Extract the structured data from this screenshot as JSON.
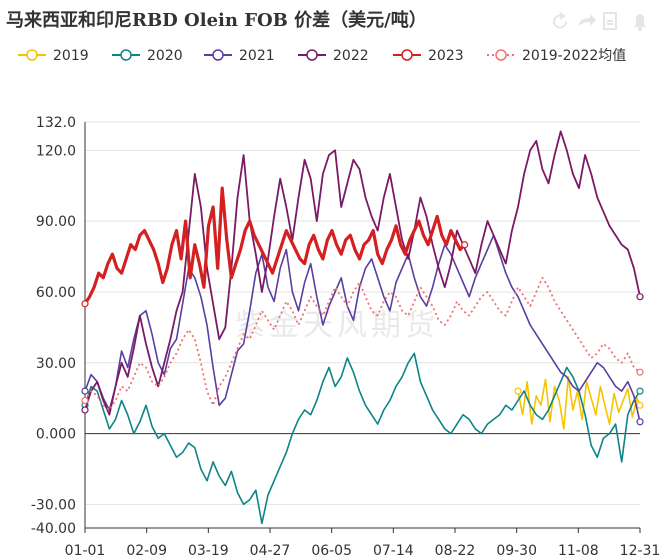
{
  "title": "马来西亚和印尼RBD Olein FOB 价差（美元/吨）",
  "watermark": "紫金天风期货",
  "toolbox_icons": [
    "restore-icon",
    "share-icon",
    "save-image-icon",
    "bell-icon"
  ],
  "chart_data": {
    "type": "line",
    "x_ticks": [
      "01-01",
      "02-09",
      "03-19",
      "04-27",
      "06-05",
      "07-14",
      "08-22",
      "09-30",
      "11-08",
      "12-31"
    ],
    "y_ticks": [
      "132.0",
      "120.0",
      "90.00",
      "60.00",
      "30.00",
      "0.000",
      "-30.00",
      "-40.00"
    ],
    "ylim": [
      -40,
      132
    ],
    "legend_position": "top",
    "series": [
      {
        "name": "2019",
        "color": "#f5c400",
        "width": 1.6,
        "x": [
          284,
          287,
          290,
          293,
          296,
          299,
          302,
          305,
          308,
          311,
          314,
          317,
          320,
          323,
          326,
          329,
          332,
          335,
          338,
          341,
          344,
          347,
          350,
          353,
          356,
          359,
          362,
          364
        ],
        "y": [
          18,
          8,
          22,
          4,
          16,
          12,
          23,
          5,
          20,
          14,
          2,
          24,
          10,
          18,
          6,
          22,
          15,
          8,
          20,
          12,
          4,
          17,
          9,
          14,
          19,
          7,
          15,
          12
        ]
      },
      {
        "name": "2020",
        "color": "#0e8487",
        "width": 1.6,
        "x": [
          0,
          4,
          8,
          12,
          16,
          20,
          24,
          28,
          32,
          36,
          40,
          44,
          48,
          52,
          56,
          60,
          64,
          68,
          72,
          76,
          80,
          84,
          88,
          92,
          96,
          100,
          104,
          108,
          112,
          116,
          120,
          124,
          128,
          132,
          136,
          140,
          144,
          148,
          152,
          156,
          160,
          164,
          168,
          172,
          176,
          180,
          184,
          188,
          192,
          196,
          200,
          204,
          208,
          212,
          216,
          220,
          224,
          228,
          232,
          236,
          240,
          244,
          248,
          252,
          256,
          260,
          264,
          268,
          272,
          276,
          280,
          284,
          288,
          292,
          296,
          300,
          304,
          308,
          312,
          316,
          320,
          324,
          328,
          332,
          336,
          340,
          344,
          348,
          352,
          356,
          360,
          364
        ],
        "y": [
          12,
          20,
          18,
          10,
          2,
          6,
          14,
          8,
          0,
          5,
          12,
          3,
          -2,
          0,
          -5,
          -10,
          -8,
          -4,
          -6,
          -15,
          -20,
          -12,
          -18,
          -22,
          -16,
          -25,
          -30,
          -28,
          -24,
          -38,
          -26,
          -20,
          -14,
          -8,
          0,
          6,
          10,
          8,
          14,
          22,
          28,
          20,
          24,
          32,
          26,
          18,
          12,
          8,
          4,
          10,
          14,
          20,
          24,
          30,
          34,
          22,
          16,
          10,
          6,
          2,
          0,
          4,
          8,
          6,
          2,
          0,
          4,
          6,
          8,
          12,
          10,
          14,
          18,
          12,
          8,
          6,
          10,
          16,
          22,
          28,
          24,
          18,
          8,
          -5,
          -10,
          -2,
          0,
          4,
          -12,
          8,
          14,
          18
        ]
      },
      {
        "name": "2021",
        "color": "#5a3ea0",
        "width": 1.6,
        "x": [
          0,
          4,
          8,
          12,
          16,
          20,
          24,
          28,
          32,
          36,
          40,
          44,
          48,
          52,
          56,
          60,
          64,
          68,
          72,
          76,
          80,
          84,
          88,
          92,
          96,
          100,
          104,
          108,
          112,
          116,
          120,
          124,
          128,
          132,
          136,
          140,
          144,
          148,
          152,
          156,
          160,
          164,
          168,
          172,
          176,
          180,
          184,
          188,
          192,
          196,
          200,
          204,
          208,
          212,
          216,
          220,
          224,
          228,
          232,
          236,
          240,
          244,
          248,
          252,
          256,
          260,
          264,
          268,
          272,
          276,
          280,
          284,
          288,
          292,
          296,
          300,
          304,
          308,
          312,
          316,
          320,
          324,
          328,
          332,
          336,
          340,
          344,
          348,
          352,
          356,
          360,
          364
        ],
        "y": [
          18,
          25,
          22,
          15,
          10,
          20,
          35,
          28,
          40,
          50,
          52,
          42,
          30,
          25,
          36,
          40,
          55,
          70,
          66,
          58,
          46,
          28,
          12,
          15,
          25,
          35,
          38,
          52,
          68,
          76,
          62,
          56,
          70,
          78,
          60,
          52,
          64,
          72,
          58,
          46,
          54,
          60,
          66,
          54,
          48,
          62,
          70,
          74,
          66,
          58,
          52,
          64,
          70,
          76,
          66,
          58,
          54,
          62,
          72,
          80,
          76,
          70,
          64,
          58,
          66,
          72,
          78,
          84,
          76,
          68,
          62,
          58,
          52,
          46,
          42,
          38,
          34,
          30,
          26,
          24,
          20,
          18,
          22,
          26,
          30,
          28,
          24,
          20,
          18,
          22,
          16,
          5
        ]
      },
      {
        "name": "2022",
        "color": "#7a1a64",
        "width": 1.8,
        "x": [
          0,
          4,
          8,
          12,
          16,
          20,
          24,
          28,
          32,
          36,
          40,
          44,
          48,
          52,
          56,
          60,
          64,
          68,
          72,
          76,
          80,
          84,
          88,
          92,
          96,
          100,
          104,
          108,
          112,
          116,
          120,
          124,
          128,
          132,
          136,
          140,
          144,
          148,
          152,
          156,
          160,
          164,
          168,
          172,
          176,
          180,
          184,
          188,
          192,
          196,
          200,
          204,
          208,
          212,
          216,
          220,
          224,
          228,
          232,
          236,
          240,
          244,
          248,
          252,
          256,
          260,
          264,
          268,
          272,
          276,
          280,
          284,
          288,
          292,
          296,
          300,
          304,
          308,
          312,
          316,
          320,
          324,
          328,
          332,
          336,
          340,
          344,
          348,
          352,
          356,
          360,
          364
        ],
        "y": [
          10,
          18,
          22,
          14,
          8,
          20,
          30,
          24,
          36,
          50,
          38,
          28,
          20,
          30,
          40,
          52,
          60,
          85,
          110,
          96,
          70,
          55,
          40,
          45,
          70,
          100,
          118,
          90,
          76,
          60,
          74,
          92,
          108,
          96,
          82,
          100,
          116,
          108,
          90,
          110,
          118,
          120,
          96,
          106,
          116,
          112,
          100,
          92,
          86,
          100,
          110,
          96,
          82,
          74,
          86,
          100,
          92,
          80,
          70,
          62,
          72,
          86,
          80,
          74,
          68,
          80,
          90,
          84,
          78,
          72,
          86,
          96,
          110,
          120,
          124,
          112,
          106,
          118,
          128,
          120,
          110,
          104,
          118,
          110,
          100,
          94,
          88,
          84,
          80,
          78,
          70,
          58
        ]
      },
      {
        "name": "2023",
        "color": "#d42020",
        "width": 3.2,
        "x": [
          0,
          3,
          6,
          9,
          12,
          15,
          18,
          21,
          24,
          27,
          30,
          33,
          36,
          39,
          42,
          45,
          48,
          51,
          54,
          57,
          60,
          63,
          66,
          69,
          72,
          75,
          78,
          81,
          84,
          87,
          90,
          93,
          96,
          99,
          102,
          105,
          108,
          111,
          114,
          117,
          120,
          123,
          126,
          129,
          132,
          135,
          138,
          141,
          144,
          147,
          150,
          153,
          156,
          159,
          162,
          165,
          168,
          171,
          174,
          177,
          180,
          183,
          186,
          189,
          192,
          195,
          198,
          201,
          204,
          207,
          210,
          213,
          216,
          219,
          222,
          225,
          228,
          231,
          234,
          237,
          240,
          243,
          246,
          249
        ],
        "y": [
          55,
          58,
          62,
          68,
          66,
          72,
          76,
          70,
          68,
          74,
          80,
          78,
          84,
          86,
          82,
          78,
          72,
          64,
          70,
          80,
          86,
          74,
          90,
          66,
          80,
          72,
          62,
          88,
          96,
          70,
          104,
          82,
          66,
          72,
          78,
          86,
          90,
          84,
          80,
          76,
          72,
          68,
          74,
          80,
          86,
          82,
          78,
          74,
          72,
          80,
          84,
          78,
          74,
          82,
          86,
          80,
          76,
          82,
          84,
          78,
          74,
          80,
          82,
          86,
          76,
          72,
          78,
          82,
          88,
          80,
          76,
          82,
          86,
          90,
          84,
          80,
          86,
          92,
          84,
          80,
          86,
          82,
          78,
          80
        ]
      },
      {
        "name": "2019-2022均值",
        "color": "#f07070",
        "width": 1.8,
        "dashed": true,
        "x": [
          0,
          4,
          8,
          12,
          16,
          20,
          24,
          28,
          32,
          36,
          40,
          44,
          48,
          52,
          56,
          60,
          64,
          68,
          72,
          76,
          80,
          84,
          88,
          92,
          96,
          100,
          104,
          108,
          112,
          116,
          120,
          124,
          128,
          132,
          136,
          140,
          144,
          148,
          152,
          156,
          160,
          164,
          168,
          172,
          176,
          180,
          184,
          188,
          192,
          196,
          200,
          204,
          208,
          212,
          216,
          220,
          224,
          228,
          232,
          236,
          240,
          244,
          248,
          252,
          256,
          260,
          264,
          268,
          272,
          276,
          280,
          284,
          288,
          292,
          296,
          300,
          304,
          308,
          312,
          316,
          320,
          324,
          328,
          332,
          336,
          340,
          344,
          348,
          352,
          356,
          360,
          364
        ],
        "y": [
          14,
          18,
          16,
          12,
          10,
          14,
          20,
          18,
          24,
          30,
          28,
          22,
          20,
          24,
          30,
          34,
          40,
          44,
          40,
          30,
          18,
          12,
          20,
          24,
          30,
          36,
          42,
          40,
          46,
          52,
          48,
          44,
          50,
          56,
          52,
          46,
          52,
          58,
          54,
          50,
          56,
          62,
          58,
          54,
          60,
          64,
          58,
          52,
          50,
          56,
          60,
          58,
          52,
          50,
          56,
          62,
          58,
          54,
          48,
          46,
          50,
          56,
          52,
          50,
          54,
          58,
          60,
          56,
          52,
          50,
          56,
          62,
          58,
          54,
          60,
          66,
          62,
          56,
          52,
          48,
          44,
          40,
          36,
          32,
          34,
          38,
          36,
          32,
          30,
          34,
          28,
          26
        ]
      }
    ]
  }
}
